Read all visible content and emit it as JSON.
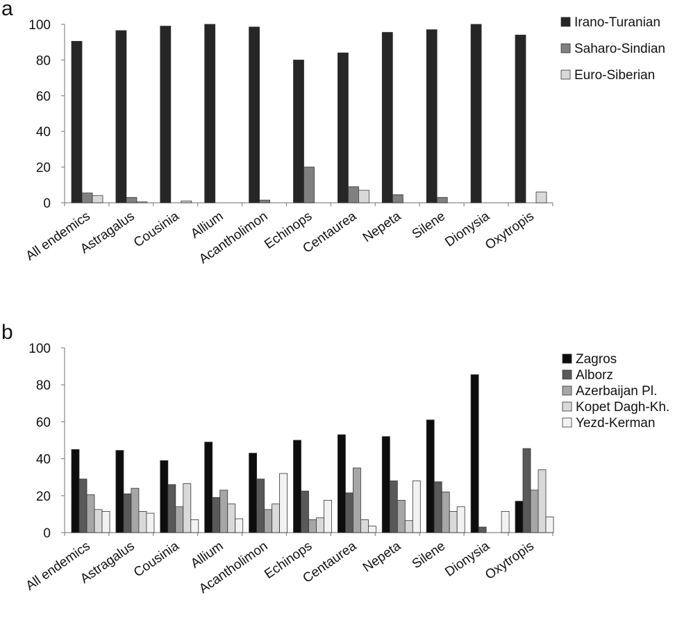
{
  "figure": {
    "panels": [
      {
        "label": "a"
      },
      {
        "label": "b"
      }
    ]
  },
  "chart_data": [
    {
      "type": "bar",
      "title": "",
      "xlabel": "",
      "ylabel": "",
      "ylim": [
        0,
        100
      ],
      "yticks": [
        0,
        20,
        40,
        60,
        80,
        100
      ],
      "grid": false,
      "legend_placement": "right",
      "categories": [
        "All endemics",
        "Astragalus",
        "Cousinia",
        "Allium",
        "Acantholimon",
        "Echinops",
        "Centaurea",
        "Nepeta",
        "Silene",
        "Dionysia",
        "Oxytropis"
      ],
      "series": [
        {
          "name": "Irano-Turanian",
          "color": "#262626",
          "values": [
            90.5,
            96.5,
            99,
            100,
            98.5,
            80,
            84,
            95.5,
            97,
            100,
            94
          ]
        },
        {
          "name": "Saharo-Sindian",
          "color": "#808080",
          "values": [
            5.5,
            3,
            0,
            0,
            1.5,
            20,
            9,
            4.5,
            3,
            0,
            0
          ]
        },
        {
          "name": "Euro-Siberian",
          "color": "#d9d9d9",
          "values": [
            4,
            0.5,
            1,
            0,
            0,
            0,
            7,
            0,
            0,
            0,
            6
          ]
        }
      ]
    },
    {
      "type": "bar",
      "title": "",
      "xlabel": "",
      "ylabel": "",
      "ylim": [
        0,
        100
      ],
      "yticks": [
        0,
        20,
        40,
        60,
        80,
        100
      ],
      "grid": false,
      "legend_placement": "right",
      "categories": [
        "All endemics",
        "Astragalus",
        "Cousinia",
        "Allium",
        "Acantholimon",
        "Echinops",
        "Centaurea",
        "Nepeta",
        "Silene",
        "Dionysia",
        "Oxytropis"
      ],
      "series": [
        {
          "name": "Zagros",
          "color": "#0d0d0d",
          "values": [
            45,
            44.5,
            39,
            49,
            43,
            50,
            53,
            52,
            61,
            85.5,
            17
          ]
        },
        {
          "name": "Alborz",
          "color": "#595959",
          "values": [
            29,
            21,
            26,
            19,
            29,
            22.5,
            21.5,
            28,
            27.5,
            3,
            45.5
          ]
        },
        {
          "name": "Azerbaijan Pl.",
          "color": "#a6a6a6",
          "values": [
            20.5,
            24,
            14,
            23,
            12.5,
            7,
            35,
            17.5,
            22,
            0,
            23
          ]
        },
        {
          "name": "Kopet Dagh-Kh.",
          "color": "#d9d9d9",
          "values": [
            12.5,
            11.5,
            26.5,
            15.5,
            15.5,
            8,
            7,
            6.5,
            11.5,
            0,
            34
          ]
        },
        {
          "name": "Yezd-Kerman",
          "color": "#f2f2f2",
          "values": [
            11.5,
            10.5,
            7,
            7.5,
            32,
            17.5,
            3.5,
            28,
            14,
            11.5,
            8.5
          ]
        }
      ]
    }
  ]
}
